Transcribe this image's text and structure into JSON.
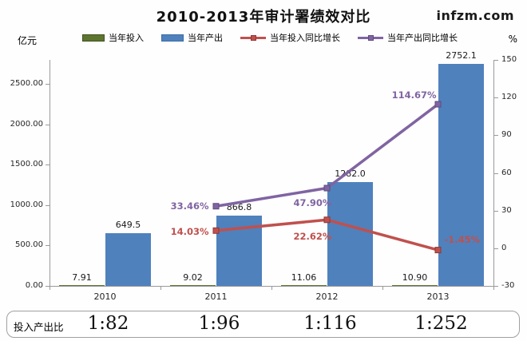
{
  "header": {
    "title": "2010-2013年审计署绩效对比",
    "watermark": "infzm.com"
  },
  "chart_data": {
    "type": "combo",
    "title": "2010-2013年审计署绩效对比",
    "categories": [
      "2010",
      "2011",
      "2012",
      "2013"
    ],
    "left_axis": {
      "unit": "亿元",
      "min": 0,
      "max": 2800,
      "tick_labels": [
        "0.00",
        "500.00",
        "1000.00",
        "1500.00",
        "2000.00",
        "2500.00"
      ],
      "tick_values": [
        0,
        500,
        1000,
        1500,
        2000,
        2500
      ]
    },
    "right_axis": {
      "unit": "%",
      "min": -30,
      "max": 150,
      "tick_labels": [
        "-30",
        "0",
        "30",
        "60",
        "90",
        "120",
        "150"
      ],
      "tick_values": [
        -30,
        0,
        30,
        60,
        90,
        120,
        150
      ]
    },
    "series": [
      {
        "name": "当年投入",
        "type": "bar",
        "axis": "left",
        "color": "#5E7530",
        "border_color": "#3E5220",
        "values": [
          7.91,
          9.02,
          11.06,
          10.9
        ],
        "labels": [
          "7.91",
          "9.02",
          "11.06",
          "10.90"
        ]
      },
      {
        "name": "当年产出",
        "type": "bar",
        "axis": "left",
        "color": "#4F81BD",
        "border_color": "#3A6BA5",
        "values": [
          649.5,
          866.8,
          1282.0,
          2752.1
        ],
        "labels": [
          "649.5",
          "866.8",
          "1282.0",
          "2752.1"
        ]
      },
      {
        "name": "当年投入同比增长",
        "type": "line",
        "axis": "right",
        "color": "#C0504D",
        "marker_border": "#8C3836",
        "values": [
          null,
          14.03,
          22.62,
          -1.45
        ],
        "labels": [
          null,
          "14.03%",
          "22.62%",
          "-1.45%"
        ]
      },
      {
        "name": "当年产出同比增长",
        "type": "line",
        "axis": "right",
        "color": "#8064A2",
        "marker_border": "#5F4B7D",
        "values": [
          null,
          33.46,
          47.9,
          114.67
        ],
        "labels": [
          null,
          "33.46%",
          "47.90%",
          "114.67%"
        ]
      }
    ],
    "legend_position": "top",
    "grid": false
  },
  "ratio_row": {
    "label": "投入产出比",
    "values": [
      "1:82",
      "1:96",
      "1:116",
      "1:252"
    ]
  }
}
